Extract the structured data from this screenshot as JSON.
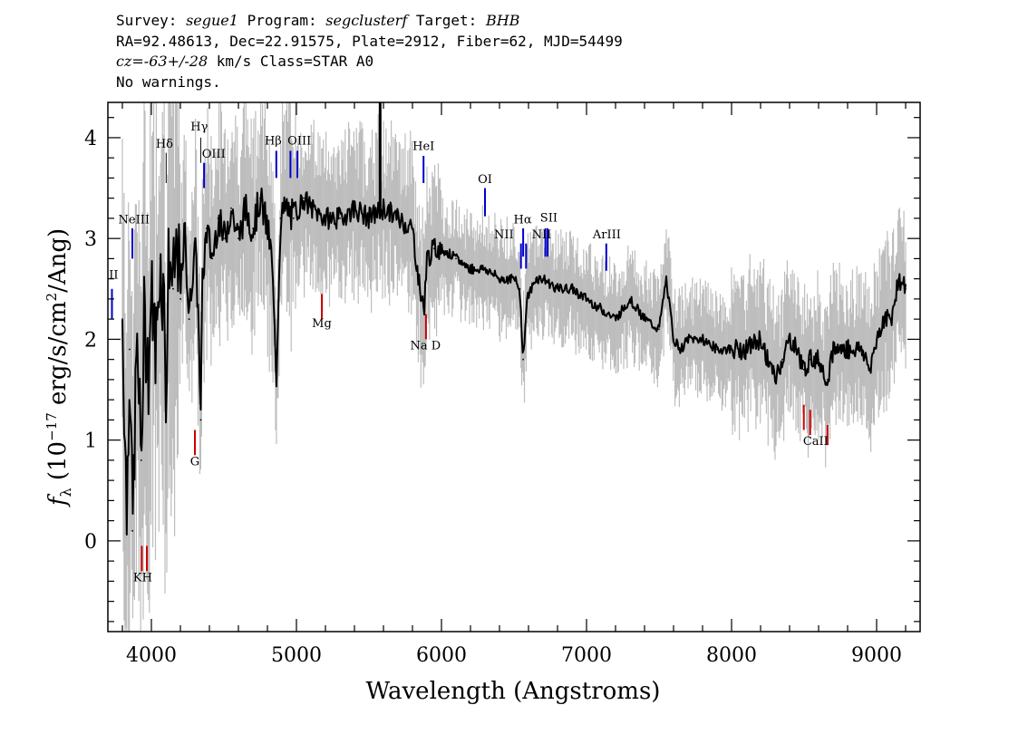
{
  "header": {
    "line1": {
      "survey_key": "Survey: ",
      "survey": "segue1",
      "program_key": " Program: ",
      "program": "segclusterf",
      "target_key": " Target: ",
      "target": "BHB"
    },
    "line2": "RA=92.48613, Dec=22.91575, Plate=2912, Fiber=62, MJD=54499",
    "line3": {
      "cz_key": "cz=",
      "cz_val": "-63+/-28",
      "cz_rest": " km/s Class=STAR A0"
    },
    "line4": "No warnings."
  },
  "colors": {
    "flux": "#000000",
    "error": "#bdbdbd",
    "emission_line": "#0000cc",
    "absorption_line": "#cc0000"
  },
  "chart_data": {
    "type": "line",
    "xlabel": "Wavelength (Angstroms)",
    "ylabel": "f_λ (10^-17 erg/s/cm^2/Ang)",
    "ylabel_parts": {
      "f": "f",
      "lambda": "λ",
      "open": " (10",
      "exp": "−17",
      "mid": " erg/s/cm",
      "exp2": "2",
      "close": "/Ang)"
    },
    "xlim": [
      3700,
      9300
    ],
    "ylim": [
      -0.9,
      4.35
    ],
    "x_ticks": [
      4000,
      5000,
      6000,
      7000,
      8000,
      9000
    ],
    "y_ticks": [
      0,
      1,
      2,
      3,
      4
    ],
    "grid": false,
    "series": [
      {
        "role": "flux",
        "x": [
          3800,
          3830,
          3850,
          3870,
          3900,
          3930,
          3950,
          3980,
          4000,
          4030,
          4060,
          4090,
          4102,
          4120,
          4150,
          4180,
          4200,
          4230,
          4260,
          4300,
          4330,
          4340,
          4350,
          4380,
          4420,
          4460,
          4500,
          4550,
          4600,
          4650,
          4700,
          4750,
          4800,
          4830,
          4861,
          4890,
          4930,
          4980,
          5050,
          5100,
          5200,
          5300,
          5400,
          5500,
          5600,
          5700,
          5800,
          5850,
          5880,
          5900,
          5950,
          6000,
          6100,
          6200,
          6300,
          6400,
          6500,
          6540,
          6563,
          6590,
          6650,
          6700,
          6800,
          6900,
          7000,
          7100,
          7200,
          7300,
          7400,
          7500,
          7550,
          7600,
          7650,
          7700,
          7800,
          7900,
          8000,
          8100,
          8200,
          8300,
          8350,
          8400,
          8450,
          8498,
          8542,
          8600,
          8662,
          8700,
          8800,
          8900,
          8950,
          9000,
          9050,
          9100,
          9150,
          9200
        ],
        "y": [
          2.2,
          0.3,
          1.9,
          0.1,
          2.0,
          0.8,
          2.2,
          1.7,
          2.5,
          1.9,
          2.8,
          2.3,
          1.4,
          2.9,
          2.5,
          3.0,
          2.4,
          3.1,
          2.2,
          3.0,
          2.0,
          1.2,
          2.5,
          3.1,
          2.8,
          3.2,
          3.0,
          3.3,
          3.0,
          3.3,
          3.1,
          3.4,
          3.1,
          2.8,
          1.6,
          3.2,
          3.3,
          3.2,
          3.4,
          3.3,
          3.2,
          3.2,
          3.3,
          3.2,
          3.3,
          3.2,
          3.1,
          2.5,
          2.3,
          2.8,
          2.9,
          2.9,
          2.8,
          2.7,
          2.7,
          2.6,
          2.6,
          2.5,
          1.8,
          2.4,
          2.6,
          2.6,
          2.5,
          2.5,
          2.4,
          2.3,
          2.2,
          2.4,
          2.2,
          2.1,
          2.6,
          2.0,
          1.9,
          2.0,
          2.0,
          1.9,
          1.9,
          1.9,
          2.0,
          1.6,
          1.8,
          2.0,
          1.9,
          1.7,
          1.8,
          1.8,
          1.6,
          1.9,
          1.9,
          1.9,
          1.7,
          2.0,
          2.2,
          2.2,
          2.6,
          2.5
        ]
      }
    ],
    "spike": {
      "x": 5577,
      "y": 4.35
    },
    "lines": [
      {
        "name": "NeV",
        "label": "II",
        "x": 3728,
        "y_top": 2.5,
        "y_bot": 2.2,
        "type": "emission"
      },
      {
        "name": "NeIII",
        "label": "NeIII",
        "x": 3869,
        "y_top": 3.1,
        "y_bot": 2.8,
        "type": "emission"
      },
      {
        "name": "K",
        "label": "KH",
        "x": 3934,
        "y_top": -0.05,
        "y_bot": -0.3,
        "type": "absorption"
      },
      {
        "name": "H",
        "label": "",
        "x": 3969,
        "y_top": -0.05,
        "y_bot": -0.3,
        "type": "absorption"
      },
      {
        "name": "Hdelta",
        "label": "Hδ",
        "x": 4102,
        "y_top": 3.85,
        "y_bot": 3.55,
        "type": "balmer"
      },
      {
        "name": "G",
        "label": "G",
        "x": 4300,
        "y_top": 1.1,
        "y_bot": 0.85,
        "type": "absorption"
      },
      {
        "name": "Hgamma",
        "label": "Hγ",
        "x": 4340,
        "y_top": 4.0,
        "y_bot": 3.75,
        "type": "balmer"
      },
      {
        "name": "OIII_4363",
        "label": "OIII",
        "x": 4363,
        "y_top": 3.75,
        "y_bot": 3.5,
        "type": "emission"
      },
      {
        "name": "Hbeta",
        "label": "Hβ",
        "x": 4861,
        "y_top": 3.87,
        "y_bot": 3.6,
        "type": "emission"
      },
      {
        "name": "OIII_4959",
        "label": "",
        "x": 4959,
        "y_top": 3.87,
        "y_bot": 3.6,
        "type": "emission"
      },
      {
        "name": "OIII_5007",
        "label": "OIII",
        "x": 5007,
        "y_top": 3.87,
        "y_bot": 3.6,
        "type": "emission"
      },
      {
        "name": "Mg",
        "label": "Mg",
        "x": 5175,
        "y_top": 2.45,
        "y_bot": 2.2,
        "type": "absorption"
      },
      {
        "name": "HeI",
        "label": "HeI",
        "x": 5876,
        "y_top": 3.82,
        "y_bot": 3.55,
        "type": "emission"
      },
      {
        "name": "NaD",
        "label": "Na D",
        "x": 5893,
        "y_top": 2.25,
        "y_bot": 2.0,
        "type": "absorption"
      },
      {
        "name": "OI",
        "label": "OI",
        "x": 6300,
        "y_top": 3.5,
        "y_bot": 3.22,
        "type": "emission"
      },
      {
        "name": "NII_6548",
        "label": "NII",
        "x": 6548,
        "y_top": 2.95,
        "y_bot": 2.7,
        "type": "emission"
      },
      {
        "name": "Halpha",
        "label": "Hα",
        "x": 6563,
        "y_top": 3.1,
        "y_bot": 2.82,
        "type": "emission"
      },
      {
        "name": "NII_6583",
        "label": "NII",
        "x": 6583,
        "y_top": 2.95,
        "y_bot": 2.7,
        "type": "emission"
      },
      {
        "name": "SII_6716",
        "label": "SII",
        "x": 6716,
        "y_top": 3.1,
        "y_bot": 2.82,
        "type": "emission"
      },
      {
        "name": "SII_6731",
        "label": "",
        "x": 6731,
        "y_top": 3.1,
        "y_bot": 2.82,
        "type": "emission"
      },
      {
        "name": "ArIII",
        "label": "ArIII",
        "x": 7136,
        "y_top": 2.95,
        "y_bot": 2.68,
        "type": "emission"
      },
      {
        "name": "CaII_8498",
        "label": "CaII",
        "x": 8498,
        "y_top": 1.35,
        "y_bot": 1.1,
        "type": "absorption"
      },
      {
        "name": "CaII_8542",
        "label": "",
        "x": 8542,
        "y_top": 1.3,
        "y_bot": 1.05,
        "type": "absorption"
      },
      {
        "name": "CaII_8662",
        "label": "",
        "x": 8662,
        "y_top": 1.15,
        "y_bot": 0.95,
        "type": "absorption"
      }
    ],
    "line_labels": [
      {
        "text": "II",
        "x": 3740,
        "y": 2.6
      },
      {
        "text": "NeIII",
        "x": 3880,
        "y": 3.15
      },
      {
        "text": "KH",
        "x": 3940,
        "y": -0.4
      },
      {
        "text": "Hδ",
        "x": 4090,
        "y": 3.9
      },
      {
        "text": "G",
        "x": 4300,
        "y": 0.75
      },
      {
        "text": "Hγ",
        "x": 4330,
        "y": 4.07
      },
      {
        "text": "OIII",
        "x": 4430,
        "y": 3.8
      },
      {
        "text": "Hβ",
        "x": 4840,
        "y": 3.93
      },
      {
        "text": "OIII",
        "x": 5020,
        "y": 3.93
      },
      {
        "text": "Mg",
        "x": 5175,
        "y": 2.12
      },
      {
        "text": "HeI",
        "x": 5876,
        "y": 3.88
      },
      {
        "text": "Na D",
        "x": 5890,
        "y": 1.9
      },
      {
        "text": "OI",
        "x": 6300,
        "y": 3.55
      },
      {
        "text": "NII",
        "x": 6430,
        "y": 3.0
      },
      {
        "text": "Hα",
        "x": 6560,
        "y": 3.15
      },
      {
        "text": "SII",
        "x": 6740,
        "y": 3.17
      },
      {
        "text": "NII",
        "x": 6690,
        "y": 3.0
      },
      {
        "text": "ArIII",
        "x": 7140,
        "y": 3.0
      },
      {
        "text": "CaII",
        "x": 8580,
        "y": 0.95
      }
    ]
  }
}
